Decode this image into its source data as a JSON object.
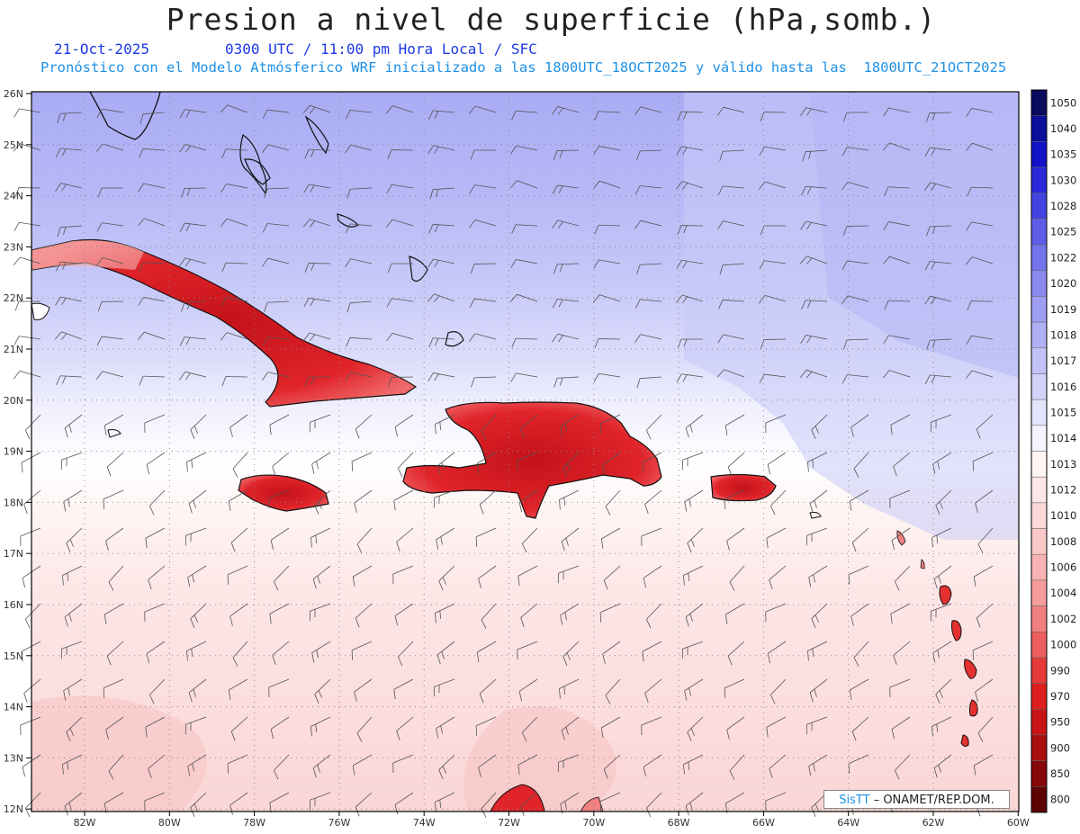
{
  "header": {
    "title": "Presion a nivel de superficie (hPa,somb.)",
    "date": "21-Oct-2025",
    "valid_time": "0300 UTC / 11:00 pm Hora Local / SFC",
    "description": "Pronóstico con el Modelo Atmósferico WRF inicializado a las 1800UTC_18OCT2025 y válido hasta las  1800UTC_21OCT2025"
  },
  "map": {
    "lat_labels": [
      "26N",
      "25N",
      "24N",
      "23N",
      "22N",
      "21N",
      "20N",
      "19N",
      "18N",
      "17N",
      "16N",
      "15N",
      "14N",
      "13N",
      "12N"
    ],
    "lon_labels": [
      "82W",
      "80W",
      "78W",
      "76W",
      "74W",
      "72W",
      "70W",
      "68W",
      "66W",
      "64W",
      "62W",
      "60W"
    ],
    "land_color": "#d9141e",
    "ocean_low_color": "#fbe1e1",
    "ocean_high_color": "#a9acf4"
  },
  "colorbar": {
    "levels": [
      "1050",
      "1040",
      "1035",
      "1030",
      "1028",
      "1025",
      "1022",
      "1020",
      "1019",
      "1018",
      "1017",
      "1016",
      "1015",
      "1014",
      "1013",
      "1012",
      "1010",
      "1008",
      "1006",
      "1004",
      "1002",
      "1000",
      "990",
      "970",
      "950",
      "900",
      "850",
      "800"
    ],
    "colors": [
      "#0a0a5e",
      "#0d0d9e",
      "#1212c8",
      "#2828da",
      "#4343e2",
      "#5c5ce8",
      "#7373ec",
      "#8a8af0",
      "#9e9ef3",
      "#b0b0f5",
      "#c2c2f7",
      "#d3d3fa",
      "#e4e4fc",
      "#f4f4fe",
      "#fff5f5",
      "#fde6e6",
      "#fcd8d8",
      "#fac7c7",
      "#f8b4b4",
      "#f59c9c",
      "#f28080",
      "#ee5e5e",
      "#e63a3a",
      "#de1f1f",
      "#c81414",
      "#a80e0e",
      "#860808",
      "#5c0303"
    ]
  },
  "credit": {
    "brand": "SisTT",
    "org": " – ONAMET/REP.DOM."
  }
}
